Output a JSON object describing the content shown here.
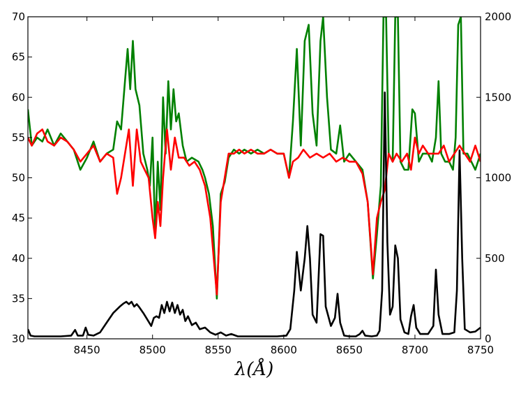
{
  "chart_data": {
    "type": "line",
    "xlabel": "λ(Å)",
    "xlim": [
      8405,
      8750
    ],
    "ylim_left": [
      30,
      70
    ],
    "ylim_right": [
      0,
      2000
    ],
    "x_ticks": [
      "8450",
      "8500",
      "8550",
      "8600",
      "8650",
      "8700",
      "8750"
    ],
    "x_tick_values": [
      8450,
      8500,
      8550,
      8600,
      8650,
      8700,
      8750
    ],
    "y_ticks_left": [
      "30",
      "35",
      "40",
      "45",
      "50",
      "55",
      "60",
      "65",
      "70"
    ],
    "y_tick_values_left": [
      30,
      35,
      40,
      45,
      50,
      55,
      60,
      65,
      70
    ],
    "y_ticks_right": [
      "0",
      "500",
      "1000",
      "1500",
      "2000"
    ],
    "y_tick_values_right": [
      0,
      500,
      1000,
      1500,
      2000
    ],
    "grid": false,
    "legend": "none",
    "series": [
      {
        "axis": "left",
        "color": "#008000",
        "points": [
          [
            8405,
            58.5
          ],
          [
            8408,
            54
          ],
          [
            8412,
            55
          ],
          [
            8416,
            54.5
          ],
          [
            8420,
            56
          ],
          [
            8425,
            54
          ],
          [
            8430,
            55.5
          ],
          [
            8435,
            54.5
          ],
          [
            8440,
            53.5
          ],
          [
            8445,
            51
          ],
          [
            8450,
            52.5
          ],
          [
            8455,
            54.5
          ],
          [
            8460,
            52
          ],
          [
            8465,
            53
          ],
          [
            8470,
            53.5
          ],
          [
            8473,
            57
          ],
          [
            8476,
            56
          ],
          [
            8479,
            62
          ],
          [
            8481,
            66
          ],
          [
            8483,
            61
          ],
          [
            8485,
            67
          ],
          [
            8487,
            61
          ],
          [
            8490,
            59
          ],
          [
            8493,
            53
          ],
          [
            8496,
            51
          ],
          [
            8498,
            49
          ],
          [
            8500,
            55
          ],
          [
            8502,
            43
          ],
          [
            8504,
            52
          ],
          [
            8506,
            46
          ],
          [
            8508,
            60
          ],
          [
            8510,
            53
          ],
          [
            8512,
            62
          ],
          [
            8514,
            56
          ],
          [
            8516,
            61
          ],
          [
            8518,
            57
          ],
          [
            8520,
            58
          ],
          [
            8523,
            54
          ],
          [
            8526,
            52
          ],
          [
            8530,
            52.5
          ],
          [
            8535,
            52
          ],
          [
            8538,
            51
          ],
          [
            8540,
            50
          ],
          [
            8543,
            48
          ],
          [
            8546,
            44
          ],
          [
            8549,
            35
          ],
          [
            8552,
            48
          ],
          [
            8555,
            49.5
          ],
          [
            8558,
            52.5
          ],
          [
            8562,
            53.5
          ],
          [
            8566,
            53
          ],
          [
            8570,
            53.5
          ],
          [
            8575,
            53
          ],
          [
            8580,
            53.5
          ],
          [
            8585,
            53
          ],
          [
            8590,
            53.5
          ],
          [
            8595,
            53
          ],
          [
            8600,
            53
          ],
          [
            8604,
            50
          ],
          [
            8607,
            57
          ],
          [
            8610,
            66
          ],
          [
            8613,
            54
          ],
          [
            8616,
            67
          ],
          [
            8619,
            69
          ],
          [
            8622,
            58
          ],
          [
            8625,
            54
          ],
          [
            8628,
            67
          ],
          [
            8630,
            70
          ],
          [
            8633,
            60
          ],
          [
            8636,
            53.5
          ],
          [
            8640,
            53
          ],
          [
            8643,
            56.5
          ],
          [
            8646,
            52
          ],
          [
            8650,
            53
          ],
          [
            8655,
            52
          ],
          [
            8660,
            51
          ],
          [
            8664,
            47
          ],
          [
            8668,
            37.5
          ],
          [
            8671,
            43
          ],
          [
            8674,
            49
          ],
          [
            8676,
            70
          ],
          [
            8678,
            70
          ],
          [
            8680,
            53
          ],
          [
            8683,
            52
          ],
          [
            8685,
            70
          ],
          [
            8687,
            70
          ],
          [
            8689,
            52
          ],
          [
            8692,
            51
          ],
          [
            8695,
            51
          ],
          [
            8698,
            58.5
          ],
          [
            8700,
            58
          ],
          [
            8703,
            52
          ],
          [
            8706,
            53
          ],
          [
            8710,
            53
          ],
          [
            8713,
            52
          ],
          [
            8716,
            55
          ],
          [
            8718,
            62
          ],
          [
            8720,
            53
          ],
          [
            8723,
            52
          ],
          [
            8726,
            52
          ],
          [
            8729,
            51
          ],
          [
            8731,
            55
          ],
          [
            8733,
            69
          ],
          [
            8735,
            70
          ],
          [
            8737,
            53
          ],
          [
            8740,
            53
          ],
          [
            8743,
            52
          ],
          [
            8746,
            51
          ],
          [
            8750,
            53
          ]
        ]
      },
      {
        "axis": "left",
        "color": "#ff0000",
        "points": [
          [
            8405,
            55
          ],
          [
            8408,
            54
          ],
          [
            8412,
            55.5
          ],
          [
            8416,
            56
          ],
          [
            8420,
            54.5
          ],
          [
            8425,
            54
          ],
          [
            8430,
            55
          ],
          [
            8435,
            54.5
          ],
          [
            8440,
            53.5
          ],
          [
            8445,
            52
          ],
          [
            8450,
            53
          ],
          [
            8455,
            54
          ],
          [
            8460,
            52
          ],
          [
            8465,
            53
          ],
          [
            8470,
            52.5
          ],
          [
            8473,
            48
          ],
          [
            8476,
            50
          ],
          [
            8479,
            53
          ],
          [
            8482,
            56
          ],
          [
            8485,
            49
          ],
          [
            8488,
            56
          ],
          [
            8491,
            52
          ],
          [
            8494,
            51
          ],
          [
            8497,
            50
          ],
          [
            8500,
            45
          ],
          [
            8502,
            42.5
          ],
          [
            8504,
            47
          ],
          [
            8506,
            44
          ],
          [
            8508,
            50
          ],
          [
            8511,
            56
          ],
          [
            8514,
            51
          ],
          [
            8517,
            55
          ],
          [
            8520,
            52.5
          ],
          [
            8524,
            52.5
          ],
          [
            8528,
            51.5
          ],
          [
            8532,
            52
          ],
          [
            8536,
            51
          ],
          [
            8540,
            49
          ],
          [
            8544,
            45
          ],
          [
            8549,
            35.5
          ],
          [
            8552,
            47
          ],
          [
            8555,
            50
          ],
          [
            8558,
            53
          ],
          [
            8562,
            53
          ],
          [
            8566,
            53.5
          ],
          [
            8570,
            53
          ],
          [
            8575,
            53.5
          ],
          [
            8580,
            53
          ],
          [
            8585,
            53
          ],
          [
            8590,
            53.5
          ],
          [
            8595,
            53
          ],
          [
            8600,
            53
          ],
          [
            8604,
            50
          ],
          [
            8607,
            52
          ],
          [
            8611,
            52.5
          ],
          [
            8615,
            53.5
          ],
          [
            8620,
            52.5
          ],
          [
            8625,
            53
          ],
          [
            8630,
            52.5
          ],
          [
            8635,
            53
          ],
          [
            8640,
            52
          ],
          [
            8645,
            52.5
          ],
          [
            8650,
            52
          ],
          [
            8655,
            52
          ],
          [
            8660,
            50.5
          ],
          [
            8664,
            47
          ],
          [
            8668,
            38
          ],
          [
            8671,
            45
          ],
          [
            8674,
            47
          ],
          [
            8677,
            48.5
          ],
          [
            8680,
            53
          ],
          [
            8683,
            52
          ],
          [
            8686,
            53
          ],
          [
            8690,
            52
          ],
          [
            8694,
            53
          ],
          [
            8697,
            51
          ],
          [
            8700,
            55
          ],
          [
            8703,
            53
          ],
          [
            8706,
            54
          ],
          [
            8710,
            53
          ],
          [
            8714,
            53
          ],
          [
            8718,
            53
          ],
          [
            8722,
            54
          ],
          [
            8726,
            52
          ],
          [
            8730,
            53
          ],
          [
            8734,
            54
          ],
          [
            8738,
            53
          ],
          [
            8742,
            52
          ],
          [
            8746,
            54
          ],
          [
            8750,
            52
          ]
        ]
      },
      {
        "axis": "right",
        "color": "#000000",
        "points": [
          [
            8405,
            60
          ],
          [
            8407,
            20
          ],
          [
            8410,
            15
          ],
          [
            8420,
            15
          ],
          [
            8430,
            15
          ],
          [
            8438,
            20
          ],
          [
            8441,
            55
          ],
          [
            8443,
            20
          ],
          [
            8447,
            20
          ],
          [
            8449,
            70
          ],
          [
            8451,
            25
          ],
          [
            8455,
            20
          ],
          [
            8460,
            40
          ],
          [
            8465,
            100
          ],
          [
            8470,
            160
          ],
          [
            8475,
            200
          ],
          [
            8478,
            220
          ],
          [
            8480,
            230
          ],
          [
            8482,
            215
          ],
          [
            8484,
            230
          ],
          [
            8486,
            200
          ],
          [
            8488,
            215
          ],
          [
            8490,
            195
          ],
          [
            8493,
            160
          ],
          [
            8496,
            120
          ],
          [
            8499,
            80
          ],
          [
            8501,
            130
          ],
          [
            8503,
            140
          ],
          [
            8505,
            130
          ],
          [
            8507,
            210
          ],
          [
            8509,
            160
          ],
          [
            8511,
            230
          ],
          [
            8513,
            170
          ],
          [
            8515,
            225
          ],
          [
            8517,
            160
          ],
          [
            8519,
            210
          ],
          [
            8521,
            150
          ],
          [
            8523,
            180
          ],
          [
            8525,
            110
          ],
          [
            8527,
            140
          ],
          [
            8530,
            85
          ],
          [
            8533,
            100
          ],
          [
            8536,
            60
          ],
          [
            8540,
            70
          ],
          [
            8544,
            40
          ],
          [
            8548,
            25
          ],
          [
            8552,
            40
          ],
          [
            8556,
            20
          ],
          [
            8560,
            30
          ],
          [
            8565,
            15
          ],
          [
            8575,
            15
          ],
          [
            8585,
            15
          ],
          [
            8595,
            15
          ],
          [
            8602,
            20
          ],
          [
            8605,
            60
          ],
          [
            8608,
            300
          ],
          [
            8610,
            540
          ],
          [
            8613,
            300
          ],
          [
            8616,
            500
          ],
          [
            8618,
            700
          ],
          [
            8620,
            500
          ],
          [
            8622,
            150
          ],
          [
            8625,
            100
          ],
          [
            8628,
            650
          ],
          [
            8630,
            640
          ],
          [
            8632,
            200
          ],
          [
            8636,
            80
          ],
          [
            8639,
            130
          ],
          [
            8641,
            280
          ],
          [
            8643,
            100
          ],
          [
            8646,
            20
          ],
          [
            8650,
            15
          ],
          [
            8655,
            15
          ],
          [
            8658,
            30
          ],
          [
            8660,
            50
          ],
          [
            8662,
            20
          ],
          [
            8667,
            15
          ],
          [
            8671,
            20
          ],
          [
            8673,
            50
          ],
          [
            8675,
            300
          ],
          [
            8677,
            1530
          ],
          [
            8679,
            600
          ],
          [
            8681,
            150
          ],
          [
            8683,
            200
          ],
          [
            8685,
            580
          ],
          [
            8687,
            500
          ],
          [
            8689,
            120
          ],
          [
            8692,
            40
          ],
          [
            8695,
            30
          ],
          [
            8697,
            140
          ],
          [
            8699,
            210
          ],
          [
            8701,
            70
          ],
          [
            8704,
            30
          ],
          [
            8710,
            30
          ],
          [
            8714,
            80
          ],
          [
            8716,
            430
          ],
          [
            8718,
            150
          ],
          [
            8721,
            30
          ],
          [
            8726,
            30
          ],
          [
            8730,
            40
          ],
          [
            8732,
            300
          ],
          [
            8734,
            1170
          ],
          [
            8736,
            500
          ],
          [
            8738,
            60
          ],
          [
            8742,
            40
          ],
          [
            8746,
            45
          ],
          [
            8750,
            70
          ]
        ]
      }
    ]
  }
}
